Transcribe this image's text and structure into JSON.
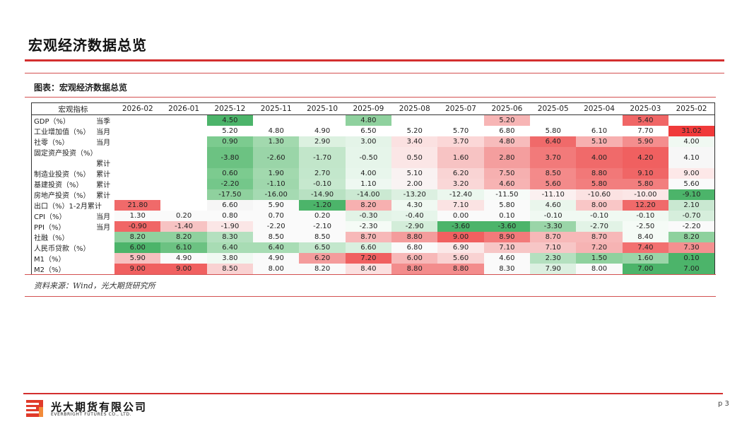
{
  "page": {
    "title": "宏观经济数据总览",
    "caption": "图表：宏观经济数据总览",
    "source": "资料来源：Wind，光大期货研究所",
    "page_number": "p 3"
  },
  "company": {
    "name_cn": "光大期货有限公司",
    "name_en": "EVERBRIGHT FUTURES CO., LTD.",
    "logo_icon": "everbright-logo-icon"
  },
  "table": {
    "header_label": "宏观指标",
    "columns": [
      "2026-02",
      "2026-01",
      "2025-12",
      "2025-11",
      "2025-10",
      "2025-09",
      "2025-08",
      "2025-07",
      "2025-06",
      "2025-05",
      "2025-04",
      "2025-03",
      "2025-02"
    ],
    "rows": [
      {
        "name": "GDP（%）",
        "unit": "当季",
        "values": [
          "",
          "",
          "4.50",
          "",
          "",
          "4.80",
          "",
          "",
          "5.20",
          "",
          "",
          "5.40",
          ""
        ],
        "colors": [
          "",
          "",
          "#4cb46a",
          "",
          "",
          "#8fd19e",
          "",
          "",
          "#f7b5b5",
          "",
          "",
          "#f06666",
          ""
        ]
      },
      {
        "name": "工业增加值（%）",
        "unit": "当月",
        "values": [
          "",
          "",
          "5.20",
          "4.80",
          "4.90",
          "6.50",
          "5.20",
          "5.70",
          "6.80",
          "5.80",
          "6.10",
          "7.70",
          "31.02"
        ],
        "colors": [
          "",
          "",
          "",
          "",
          "",
          "",
          "",
          "",
          "",
          "",
          "",
          "",
          "#f03a3a"
        ]
      },
      {
        "name": "社零（%）",
        "unit": "当月",
        "values": [
          "",
          "",
          "0.90",
          "1.30",
          "2.90",
          "3.00",
          "3.40",
          "3.70",
          "4.80",
          "6.40",
          "5.10",
          "5.90",
          "4.00"
        ],
        "colors": [
          "",
          "",
          "#7ccb8f",
          "#a2d9ae",
          "#dcf1e0",
          "#e4f4e8",
          "#fbe1e1",
          "#fbd7d7",
          "#f7bcbc",
          "#f06a6a",
          "#f7b0b0",
          "#f48e8e",
          "#f0f9f2"
        ]
      },
      {
        "name": "固定资产投资（%）",
        "unit": "累计",
        "values": [
          "",
          "",
          "-3.80",
          "-2.60",
          "-1.70",
          "-0.50",
          "0.50",
          "1.60",
          "2.80",
          "3.70",
          "4.00",
          "4.20",
          "4.10"
        ],
        "colors": [
          "",
          "",
          "#6cc282",
          "#9ad5a8",
          "#c2e6ca",
          "#e6f5ea",
          "#fbe6e6",
          "#f7c3c3",
          "#f49e9e",
          "#f27a7a",
          "#f06a6a",
          "#f06060",
          "#f7f7f7"
        ]
      },
      {
        "name": "制造业投资（%）",
        "unit": "累计",
        "values": [
          "",
          "",
          "0.60",
          "1.90",
          "2.70",
          "4.00",
          "5.10",
          "6.20",
          "7.50",
          "8.50",
          "8.80",
          "9.10",
          "9.00"
        ],
        "colors": [
          "",
          "",
          "#7ccb8f",
          "#a2d9ae",
          "#c3e7cc",
          "#e8f6ec",
          "#f9f2f2",
          "#f9d4d4",
          "#f6b0b0",
          "#f48a8a",
          "#f27878",
          "#f06666",
          "#fde8e8"
        ]
      },
      {
        "name": "基建投资（%）",
        "unit": "累计",
        "values": [
          "",
          "",
          "-2.20",
          "-1.10",
          "-0.10",
          "1.10",
          "2.00",
          "3.20",
          "4.60",
          "5.60",
          "5.80",
          "5.80",
          "5.60"
        ],
        "colors": [
          "",
          "",
          "#74c78a",
          "#9fd7ac",
          "#c6e8ce",
          "#eef8f1",
          "#f9f3f3",
          "#fad7d7",
          "#f7b3b3",
          "#f38a8a",
          "#f27e7e",
          "#f27e7e",
          "#fafafa"
        ]
      },
      {
        "name": "房地产投资（%）",
        "unit": "累计",
        "values": [
          "",
          "",
          "-17.50",
          "-16.00",
          "-14.90",
          "-14.00",
          "-13.20",
          "-12.40",
          "-11.50",
          "-11.10",
          "-10.60",
          "-10.00",
          "-9.10"
        ],
        "colors": [
          "",
          "",
          "#8fd19e",
          "#a5dab2",
          "#b8e1c2",
          "#cbe9d2",
          "#dcf0e1",
          "#ebf7ee",
          "#f7fbf8",
          "#fbf0f0",
          "#fbe2e2",
          "#fbe6e6",
          "#4cb46a"
        ]
      },
      {
        "name": "出口（%）1-2月累计",
        "unit": "",
        "values": [
          "21.80",
          "",
          "6.60",
          "5.90",
          "-1.20",
          "8.20",
          "4.30",
          "7.10",
          "5.80",
          "4.60",
          "8.00",
          "12.20",
          "2.10"
        ],
        "colors": [
          "#f06a6a",
          "",
          "#f6f6f6",
          "#fafafa",
          "#4cb46a",
          "#f7b0b0",
          "#f0f9f2",
          "#fbe3e3",
          "#fafafa",
          "#eaf6ec",
          "#f9c6c6",
          "#f06a6a",
          "#c9e8d1"
        ]
      },
      {
        "name": "CPI（%）",
        "unit": "当月",
        "values": [
          "1.30",
          "0.20",
          "0.80",
          "0.70",
          "0.20",
          "-0.30",
          "-0.40",
          "0.00",
          "0.10",
          "-0.10",
          "-0.10",
          "-0.10",
          "-0.70"
        ],
        "colors": [
          "#fafafa",
          "#fafafa",
          "#fafafa",
          "#fafafa",
          "#fafafa",
          "#e2f3e6",
          "#e6f5ea",
          "#fafafa",
          "#fafafa",
          "#f0f9f2",
          "#f0f9f2",
          "#f0f9f2",
          "#d6eedc"
        ]
      },
      {
        "name": "PPI（%）",
        "unit": "当月",
        "values": [
          "-0.90",
          "-1.40",
          "-1.90",
          "-2.20",
          "-2.10",
          "-2.30",
          "-2.90",
          "-3.60",
          "-3.60",
          "-3.30",
          "-2.70",
          "-2.50",
          "-2.20"
        ],
        "colors": [
          "#f06666",
          "#f7c3c3",
          "#fbe6e6",
          "#fafafa",
          "#fafafa",
          "#f5fbf6",
          "#d3edd9",
          "#4cb46a",
          "#4cb46a",
          "#9ad5a8",
          "#e2f3e6",
          "#f5fbf6",
          "#fafafa"
        ]
      },
      {
        "name": "社融（%）",
        "unit": "",
        "values": [
          "8.20",
          "8.20",
          "8.30",
          "8.50",
          "8.50",
          "8.70",
          "8.80",
          "9.00",
          "8.90",
          "8.70",
          "8.70",
          "8.40",
          "8.20"
        ],
        "colors": [
          "#8fd19e",
          "#8fd19e",
          "#b4e0bf",
          "#fafafa",
          "#fafafa",
          "#f7b8b8",
          "#f49c9c",
          "#f06060",
          "#f27a7a",
          "#f7b8b8",
          "#f7b8b8",
          "#f5fbf6",
          "#8fd19e"
        ]
      },
      {
        "name": "人民币贷款（%）",
        "unit": "",
        "values": [
          "6.00",
          "6.10",
          "6.40",
          "6.40",
          "6.50",
          "6.60",
          "6.80",
          "6.90",
          "7.10",
          "7.10",
          "7.20",
          "7.40",
          "7.30"
        ],
        "colors": [
          "#4cb46a",
          "#6cc282",
          "#a8dcb4",
          "#a8dcb4",
          "#c3e7cc",
          "#d9f0df",
          "#fafafa",
          "#fbe8e8",
          "#f7c6c6",
          "#f7c6c6",
          "#f6b3b3",
          "#f27070",
          "#f49090"
        ]
      },
      {
        "name": "M1（%）",
        "unit": "",
        "values": [
          "5.90",
          "4.90",
          "3.80",
          "4.90",
          "6.20",
          "7.20",
          "6.00",
          "5.60",
          "4.60",
          "2.30",
          "1.50",
          "1.60",
          "0.10"
        ],
        "colors": [
          "#f7c0c0",
          "#fafafa",
          "#f0f9f2",
          "#fafafa",
          "#f49c9c",
          "#f06060",
          "#f7b8b8",
          "#f9d2d2",
          "#fafafa",
          "#b4e0bf",
          "#8fd19e",
          "#9ad5a8",
          "#4cb46a"
        ]
      },
      {
        "name": "M2（%）",
        "unit": "",
        "values": [
          "9.00",
          "9.00",
          "8.50",
          "8.00",
          "8.20",
          "8.40",
          "8.80",
          "8.80",
          "8.30",
          "7.90",
          "8.00",
          "7.00",
          "7.00"
        ],
        "colors": [
          "#f06060",
          "#f06060",
          "#f9d2d2",
          "#fafafa",
          "#fafafa",
          "#fbe0e0",
          "#f38c8c",
          "#f38c8c",
          "#fafafa",
          "#dcf0e1",
          "#fafafa",
          "#4cb46a",
          "#4cb46a"
        ]
      }
    ]
  }
}
